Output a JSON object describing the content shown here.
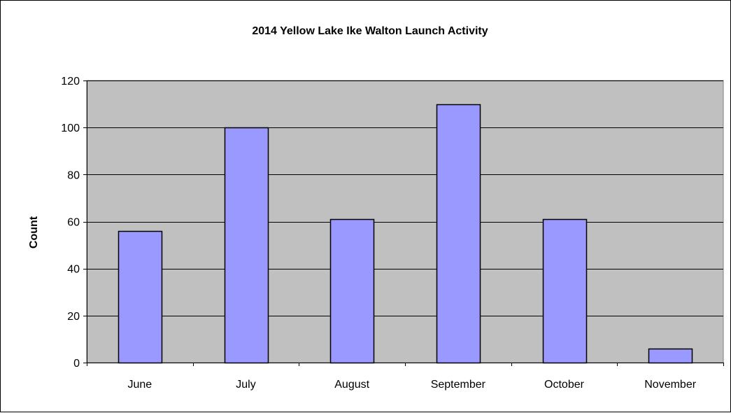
{
  "chart_data": {
    "type": "bar",
    "title": "2014 Yellow Lake Ike Walton Launch Activity",
    "xlabel": "",
    "ylabel": "Count",
    "categories": [
      "June",
      "July",
      "August",
      "September",
      "October",
      "November"
    ],
    "series": [
      {
        "values": [
          56,
          100,
          61,
          110,
          61,
          6
        ]
      }
    ],
    "ylim": [
      0,
      120
    ],
    "yticks": [
      0,
      20,
      40,
      60,
      80,
      100,
      120
    ],
    "grid": true,
    "legend": "none",
    "colors": {
      "bar": "#9999ff",
      "plot_background": "#c0c0c0",
      "gridline": "#000000"
    }
  }
}
